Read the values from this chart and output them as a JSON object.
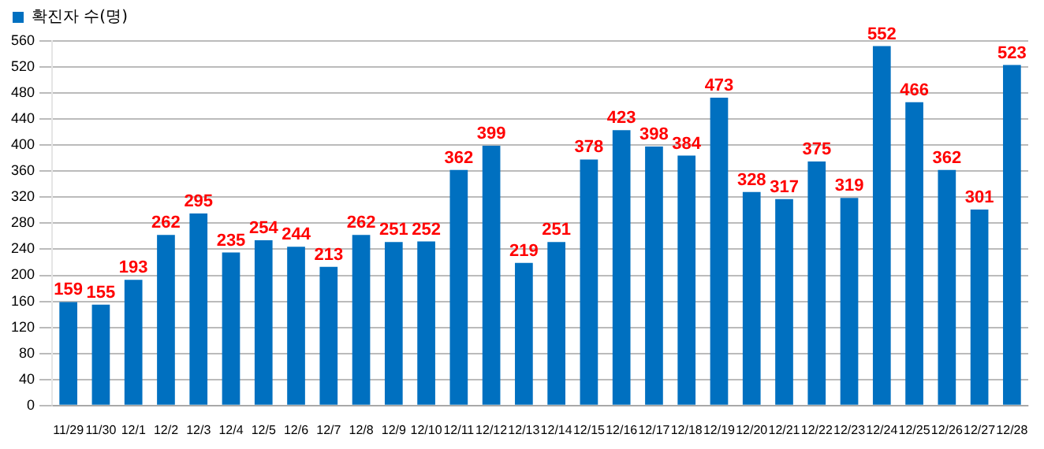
{
  "chart_data": {
    "type": "bar",
    "categories": [
      "11/29",
      "11/30",
      "12/1",
      "12/2",
      "12/3",
      "12/4",
      "12/5",
      "12/6",
      "12/7",
      "12/8",
      "12/9",
      "12/10",
      "12/11",
      "12/12",
      "12/13",
      "12/14",
      "12/15",
      "12/16",
      "12/17",
      "12/18",
      "12/19",
      "12/20",
      "12/21",
      "12/22",
      "12/23",
      "12/24",
      "12/25",
      "12/26",
      "12/27",
      "12/28"
    ],
    "series": [
      {
        "name": "확진자 수(명)",
        "color": "#0070c0",
        "values": [
          159,
          155,
          193,
          262,
          295,
          235,
          254,
          244,
          213,
          262,
          251,
          252,
          362,
          399,
          219,
          251,
          378,
          423,
          398,
          384,
          473,
          328,
          317,
          375,
          319,
          552,
          466,
          362,
          301,
          523
        ]
      }
    ],
    "ylim": [
      0,
      560
    ],
    "yticks": [
      0,
      40,
      80,
      120,
      160,
      200,
      240,
      280,
      320,
      360,
      400,
      440,
      480,
      520,
      560
    ],
    "grid": "y",
    "legend": "top left",
    "data_labels": true
  }
}
